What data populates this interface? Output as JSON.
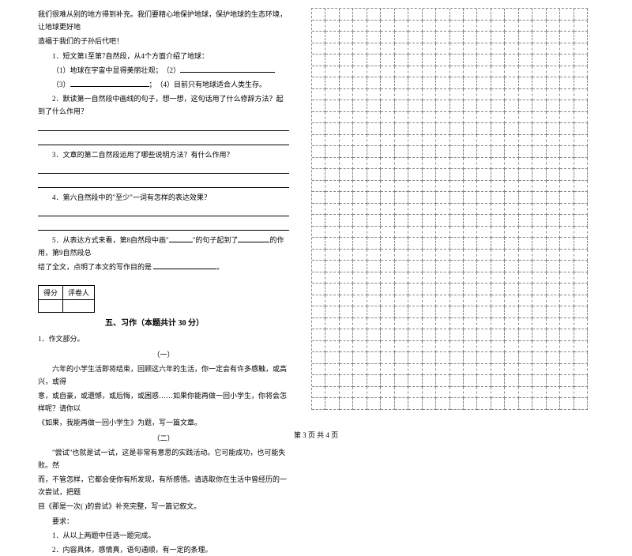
{
  "left": {
    "intro1": "我们很难从别的地方得到补充。我们要精心地保护地球，保护地球的生态环境，让地球更好地",
    "intro2": "造福于我们的子孙后代吧！",
    "q1_head": "1．短文第1至第7自然段，从4个方面介绍了地球：",
    "q1_item1": "（1）地球在宇宙中显得美丽壮观；　（2）",
    "q1_item2": "（3）",
    "q1_item2b": "；　（4）目前只有地球适合人类生存。",
    "q2": "2．默读第一自然段中画线的句子，想一想，这句话用了什么修辞方法？起到了什么作用？",
    "q3": "3．文章的第二自然段运用了哪些说明方法？有什么作用？",
    "q4": "4．第六自然段中的\"至少\"一词有怎样的表达效果？",
    "q5a": "5．从表达方式来看，第8自然段中画\"",
    "q5b": "\"的句子起到了",
    "q5c": "的作用，第9自然段总",
    "q5d": "结了全文，点明了本文的写作目的是",
    "q5e": "。",
    "score_label1": "得分",
    "score_label2": "评卷人",
    "section_title": "五、习作（本题共计 30 分）",
    "essay_head": "1．作文部分。",
    "essay_sub1": "（一）",
    "essay_p1": "六年的小学生活即将结束，回顾这六年的生活，你一定会有许多感触，或高兴，或得",
    "essay_p2": "意，或自豪，或遗憾，或后悔，或困惑……如果你能再做一回小学生，你将会怎样呢？请你以",
    "essay_p3": "《如果，我能再做一回小学生》为题，写一篇文章。",
    "essay_sub2": "（二）",
    "essay_p4": "\"尝试\"也就是试一试，这是非常有意思的实践活动。它可能成功，也可能失败。然",
    "essay_p5": "而，不管怎样，它都会使你有所发现，有所感悟。请选取你在生活中曾经历的一次尝试，把题",
    "essay_p6": "目《那是一次( )的尝试》补充完整，写一篇记叙文。",
    "req_head": "要求：",
    "req1": "1．从以上两题中任选一题完成。",
    "req2": "2．内容具体，感情真，语句通顺，有一定的条理。"
  },
  "footer": "第 3 页 共 4 页",
  "grid": {
    "rows": 35,
    "cols": 20
  }
}
